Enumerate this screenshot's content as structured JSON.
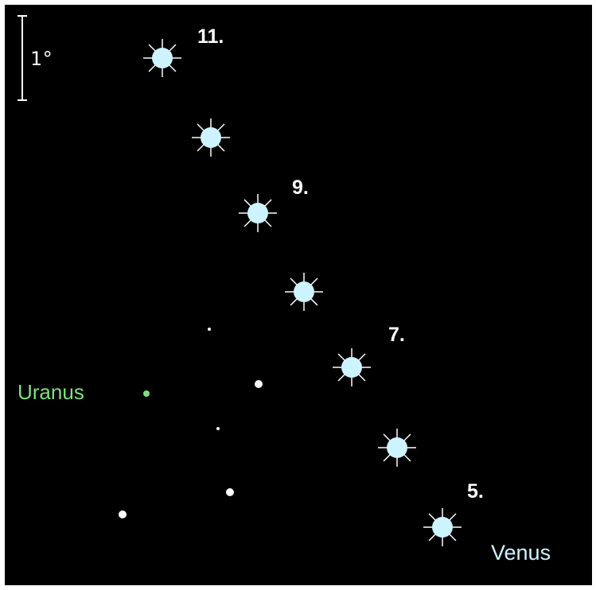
{
  "scale": {
    "label": "1°"
  },
  "labels": {
    "dates": [
      "11.",
      "9.",
      "7.",
      "5."
    ],
    "uranus": "Uranus",
    "venus": "Venus"
  }
}
